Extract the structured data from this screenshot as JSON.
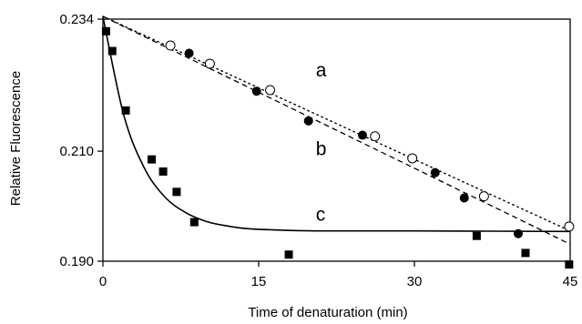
{
  "chart_data": {
    "type": "scatter",
    "title": "",
    "xlabel": "Time of denaturation (min)",
    "ylabel": "Relative Fluorescence",
    "xlim": [
      0,
      45
    ],
    "ylim": [
      0.19,
      0.234
    ],
    "x_ticks": [
      0,
      15,
      30,
      45
    ],
    "x_tick_labels": [
      "0",
      "15",
      "30",
      "45"
    ],
    "y_ticks": [
      0.19,
      0.21,
      0.234
    ],
    "y_tick_labels": [
      "0.190",
      "0.210",
      "0.234"
    ],
    "grid": false,
    "series": [
      {
        "label": "a",
        "marker": "open-circle",
        "line": "dotted",
        "points": [
          [
            6.5,
            0.2292
          ],
          [
            10.3,
            0.2259
          ],
          [
            16.1,
            0.2211
          ],
          [
            26.2,
            0.2127
          ],
          [
            29.8,
            0.2087
          ],
          [
            36.7,
            0.2018
          ],
          [
            44.9,
            0.1963
          ]
        ],
        "fit": [
          [
            0,
            0.2345
          ],
          [
            45,
            0.1955
          ]
        ]
      },
      {
        "label": "b",
        "marker": "filled-circle",
        "line": "dashed",
        "points": [
          [
            8.3,
            0.2278
          ],
          [
            14.8,
            0.2209
          ],
          [
            19.8,
            0.2155
          ],
          [
            25.0,
            0.2129
          ],
          [
            32.0,
            0.2061
          ],
          [
            34.8,
            0.2015
          ],
          [
            40.0,
            0.195
          ]
        ],
        "fit": [
          [
            0,
            0.2345
          ],
          [
            45,
            0.1931
          ]
        ]
      },
      {
        "label": "c",
        "marker": "filled-square",
        "line": "solid",
        "points": [
          [
            0.3,
            0.2318
          ],
          [
            0.9,
            0.2282
          ],
          [
            2.2,
            0.2174
          ],
          [
            4.7,
            0.2085
          ],
          [
            5.8,
            0.2063
          ],
          [
            7.1,
            0.2026
          ],
          [
            8.8,
            0.1971
          ],
          [
            17.9,
            0.1912
          ],
          [
            36.0,
            0.1946
          ],
          [
            40.7,
            0.1915
          ],
          [
            44.9,
            0.1894
          ]
        ],
        "fit": [
          [
            0,
            0.2345
          ],
          [
            2,
            0.2166
          ],
          [
            4,
            0.2069
          ],
          [
            6,
            0.2016
          ],
          [
            8,
            0.1988
          ],
          [
            10,
            0.1972
          ],
          [
            12,
            0.1964
          ],
          [
            14,
            0.1959
          ],
          [
            18,
            0.1956
          ],
          [
            22,
            0.1955
          ],
          [
            30,
            0.1955
          ],
          [
            45,
            0.1954
          ]
        ]
      }
    ]
  }
}
